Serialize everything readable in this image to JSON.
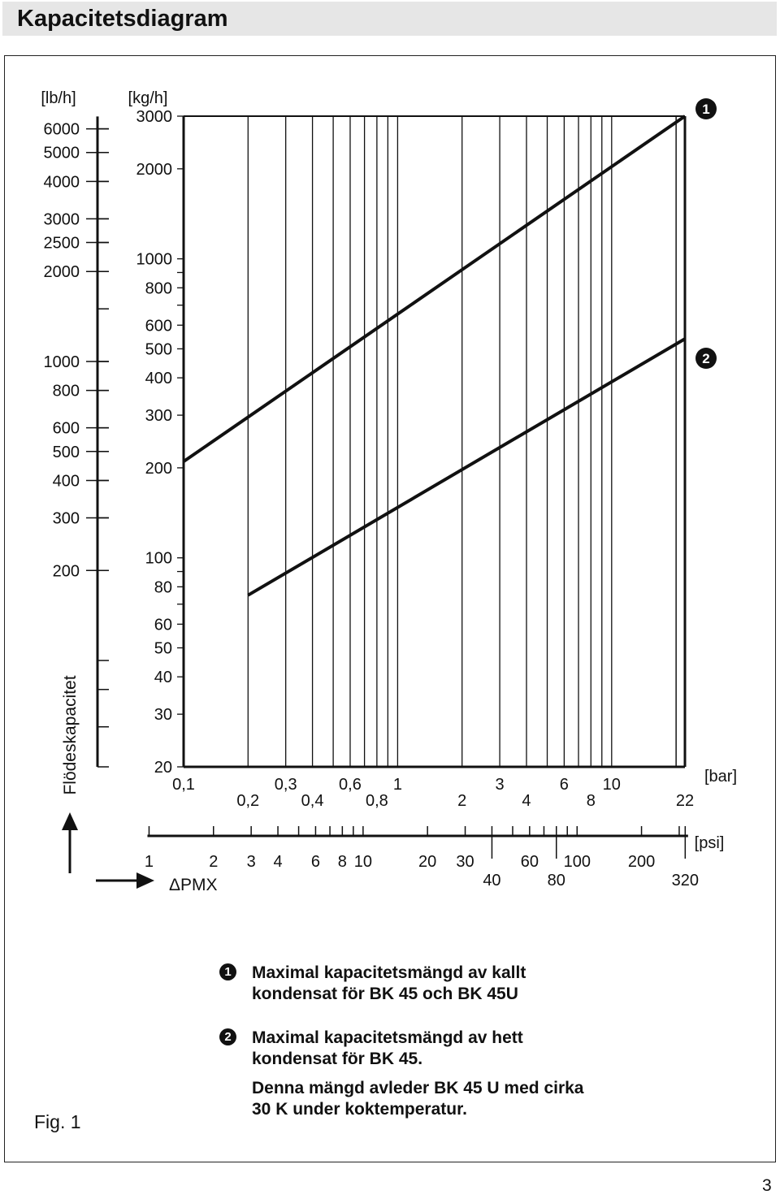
{
  "header": {
    "title": "Kapacitetsdiagram"
  },
  "badges": {
    "one": "1",
    "two": "2"
  },
  "chart_data": {
    "type": "line",
    "x": {
      "axis": "ΔPMX",
      "unit": "[bar]",
      "scale": "log",
      "range": [
        0.1,
        22
      ],
      "ticks_top": [
        "0,1",
        "0,3",
        "0,6",
        "1",
        "3",
        "6",
        "10"
      ],
      "ticks_bottom": [
        "0,2",
        "0,4",
        "0,8",
        "2",
        "4",
        "8",
        "22"
      ]
    },
    "x_secondary": {
      "unit": "[psi]",
      "scale": "log",
      "ticks_top": [
        "1",
        "2",
        "3",
        "4",
        "6",
        "8",
        "10",
        "20",
        "30",
        "60",
        "100",
        "200"
      ],
      "ticks_bottom": [
        "40",
        "80",
        "320"
      ]
    },
    "y": {
      "axis": "Flödeskapacitet",
      "unit": "[kg/h]",
      "scale": "log",
      "range": [
        20,
        3000
      ],
      "ticks": [
        "3000",
        "2000",
        "1000",
        "800",
        "600",
        "500",
        "400",
        "300",
        "200",
        "100",
        "80",
        "60",
        "50",
        "40",
        "30",
        "20"
      ]
    },
    "y_secondary": {
      "unit": "[lb/h]",
      "ticks": [
        "6000",
        "5000",
        "4000",
        "3000",
        "2500",
        "2000",
        "1000",
        "800",
        "600",
        "500",
        "400",
        "300",
        "200"
      ]
    },
    "series": [
      {
        "badge": "1",
        "points": [
          [
            0.1,
            210
          ],
          [
            22,
            3000
          ]
        ]
      },
      {
        "badge": "2",
        "points": [
          [
            0.2,
            75
          ],
          [
            22,
            540
          ]
        ]
      }
    ]
  },
  "legend": {
    "item1_lines": [
      "Maximal kapacitetsmängd av kallt",
      "kondensat för BK 45 och BK 45U"
    ],
    "item2_lines": [
      "Maximal kapacitetsmängd av hett",
      "kondensat för BK 45."
    ],
    "item3_lines": [
      "Denna mängd avleder BK 45 U med cirka",
      "30 K under koktemperatur."
    ]
  },
  "figure_label": "Fig. 1",
  "page_number": "3"
}
